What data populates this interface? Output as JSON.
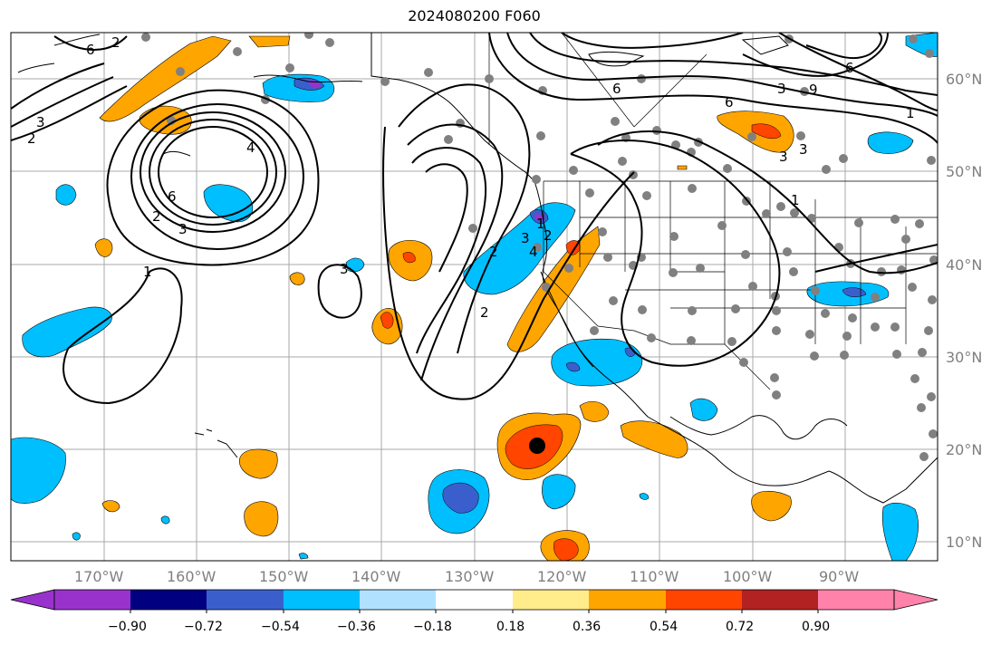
{
  "title": "2024080200 F060",
  "lon_labels": [
    "170°W",
    "160°W",
    "150°W",
    "140°W",
    "130°W",
    "120°W",
    "110°W",
    "100°W",
    "90°W"
  ],
  "lat_labels": [
    "60°N",
    "50°N",
    "40°N",
    "30°N",
    "20°N",
    "10°N"
  ],
  "colorbar": {
    "ticks": [
      "−0.90",
      "−0.72",
      "−0.54",
      "−0.36",
      "−0.18",
      "0.18",
      "0.36",
      "0.54",
      "0.72",
      "0.90"
    ],
    "colors": [
      "#9932cc",
      "#000080",
      "#3a5fcd",
      "#00bfff",
      "#b0e2ff",
      "#ffffff",
      "#ffec8b",
      "#ffa500",
      "#ff4500",
      "#b22222",
      "#ff82ab"
    ]
  },
  "contour_labels": [
    "6",
    "3",
    "2",
    "6",
    "3",
    "2",
    "1",
    "4",
    "3",
    "2",
    "1",
    "3",
    "2",
    "4",
    "2",
    "6",
    "3",
    "6",
    "3",
    "3",
    "1",
    "6",
    "9",
    "1",
    "2"
  ],
  "colors": {
    "fill_orange": "#ffa500",
    "fill_red": "#ff4500",
    "fill_blue": "#00bfff",
    "fill_dark_blue": "#3a5fcd",
    "fill_purple": "#9932cc",
    "station_dot": "#808080",
    "center_marker": "#000000"
  }
}
